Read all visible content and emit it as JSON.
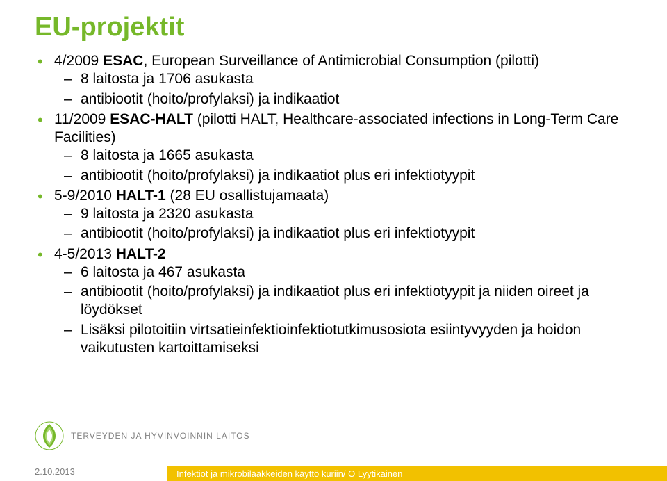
{
  "title": "EU-projektit",
  "bullets": [
    {
      "text_parts": [
        "4/2009 ",
        "ESAC",
        ", European Surveillance of Antimicrobial Consumption (pilotti)"
      ],
      "bold_idx": 1,
      "sub": [
        "8 laitosta ja 1706 asukasta",
        "antibiootit (hoito/profylaksi) ja indikaatiot"
      ]
    },
    {
      "text_parts": [
        "11/2009 ",
        "ESAC-HALT",
        " (pilotti HALT, Healthcare-associated infections in Long-Term Care Facilities)"
      ],
      "bold_idx": 1,
      "sub": [
        "8 laitosta ja 1665 asukasta",
        "antibiootit (hoito/profylaksi) ja indikaatiot plus eri infektiotyypit"
      ]
    },
    {
      "text_parts": [
        "5-9/2010 ",
        "HALT-1",
        " (28 EU osallistujamaata)"
      ],
      "bold_idx": 1,
      "sub": [
        "9 laitosta ja 2320 asukasta",
        "antibiootit (hoito/profylaksi) ja indikaatiot plus eri infektiotyypit"
      ]
    },
    {
      "text_parts": [
        "4-5/2013 ",
        "HALT-2",
        ""
      ],
      "bold_idx": 1,
      "sub": [
        "6 laitosta ja 467 asukasta",
        "antibiootit (hoito/profylaksi) ja indikaatiot plus eri infektiotyypit ja niiden oireet ja löydökset",
        "Lisäksi pilotoitiin virtsatieinfektioinfektiotutkimusosiota esiintyvyyden ja hoidon vaikutusten kartoittamiseksi"
      ]
    }
  ],
  "logo_text": "TERVEYDEN JA HYVINVOINNIN LAITOS",
  "footer_date": "2.10.2013",
  "footer_label": "Infektiot ja mikrobilääkkeiden käyttö kuriin/ O Lyytikäinen",
  "colors": {
    "accent_green": "#76b82a",
    "footer_yellow": "#f2c100",
    "grey_text": "#808080"
  }
}
